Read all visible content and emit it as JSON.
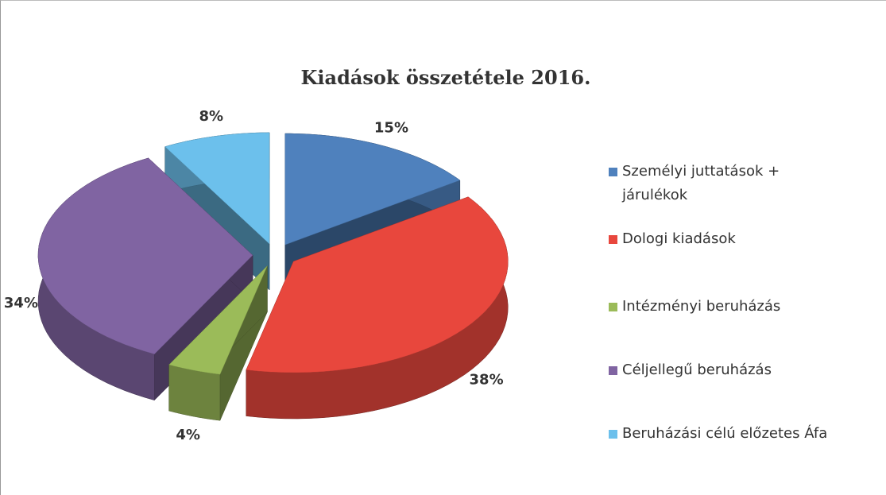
{
  "chart_data": {
    "type": "pie",
    "title": "Kiadások összetétele 2016.",
    "categories": [
      "Személyi juttatások + járulékok",
      "Dologi kiadások",
      "Intézményi beruházás",
      "Céljellegű beruházás",
      "Beruházási célú előzetes Áfa"
    ],
    "values": [
      15,
      38,
      4,
      34,
      8
    ],
    "value_labels": [
      "15%",
      "38%",
      "4%",
      "34%",
      "8%"
    ],
    "colors": [
      "#4f81bd",
      "#e8473d",
      "#9bbb59",
      "#8064a2",
      "#6cc0ec"
    ],
    "legend": "right"
  }
}
